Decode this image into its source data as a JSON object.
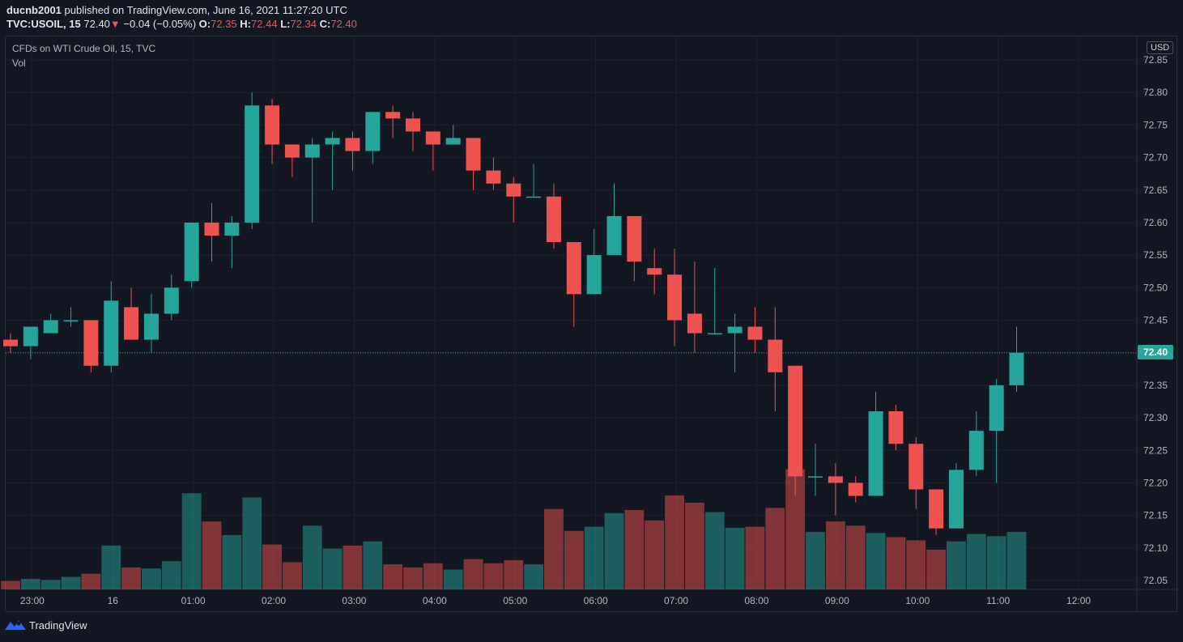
{
  "header": {
    "author": "ducnb2001",
    "published_text": "published on TradingView.com, June 16, 2021 11:27:20 UTC",
    "symbol": "TVC:USOIL, 15",
    "last": "72.40",
    "change": "−0.04 (−0.05%)",
    "open_label": "O:",
    "open": "72.35",
    "high_label": "H:",
    "high": "72.44",
    "low_label": "L:",
    "low": "72.34",
    "close_label": "C:",
    "close": "72.40"
  },
  "legend": {
    "title": "CFDs on WTI Crude Oil, 15, TVC",
    "vol": "Vol"
  },
  "currency": "USD",
  "price_tag": "72.40",
  "footer": {
    "brand": "TradingView",
    "logo_icon": "tradingview-logo-icon"
  },
  "colors": {
    "up": "#26a69a",
    "down": "#ef5350",
    "background": "#131722",
    "grid": "#1e222d"
  },
  "chart_data": {
    "type": "candlestick",
    "interval": "15",
    "y_ticks": [
      72.05,
      72.1,
      72.15,
      72.2,
      72.25,
      72.3,
      72.35,
      72.4,
      72.45,
      72.5,
      72.55,
      72.6,
      72.65,
      72.7,
      72.75,
      72.8,
      72.85
    ],
    "ylim": [
      72.03,
      72.87
    ],
    "x_tick_labels": [
      {
        "label": "23:00",
        "index": 1
      },
      {
        "label": "16",
        "index": 5
      },
      {
        "label": "01:00",
        "index": 9
      },
      {
        "label": "02:00",
        "index": 13
      },
      {
        "label": "03:00",
        "index": 17
      },
      {
        "label": "04:00",
        "index": 21
      },
      {
        "label": "05:00",
        "index": 25
      },
      {
        "label": "06:00",
        "index": 29
      },
      {
        "label": "07:00",
        "index": 33
      },
      {
        "label": "08:00",
        "index": 37
      },
      {
        "label": "09:00",
        "index": 41
      },
      {
        "label": "10:00",
        "index": 45
      },
      {
        "label": "11:00",
        "index": 49
      },
      {
        "label": "12:00",
        "index": 53
      }
    ],
    "ohlc": [
      [
        72.42,
        72.43,
        72.4,
        72.41
      ],
      [
        72.41,
        72.44,
        72.39,
        72.44
      ],
      [
        72.43,
        72.46,
        72.43,
        72.45
      ],
      [
        72.45,
        72.47,
        72.44,
        72.45
      ],
      [
        72.45,
        72.45,
        72.37,
        72.38
      ],
      [
        72.38,
        72.51,
        72.37,
        72.48
      ],
      [
        72.47,
        72.5,
        72.42,
        72.42
      ],
      [
        72.42,
        72.49,
        72.4,
        72.46
      ],
      [
        72.46,
        72.52,
        72.45,
        72.5
      ],
      [
        72.51,
        72.6,
        72.5,
        72.6
      ],
      [
        72.6,
        72.63,
        72.54,
        72.58
      ],
      [
        72.58,
        72.61,
        72.53,
        72.6
      ],
      [
        72.6,
        72.8,
        72.59,
        72.78
      ],
      [
        72.78,
        72.79,
        72.69,
        72.72
      ],
      [
        72.72,
        72.72,
        72.67,
        72.7
      ],
      [
        72.7,
        72.73,
        72.6,
        72.72
      ],
      [
        72.72,
        72.74,
        72.65,
        72.73
      ],
      [
        72.73,
        72.74,
        72.68,
        72.71
      ],
      [
        72.71,
        72.77,
        72.69,
        72.77
      ],
      [
        72.77,
        72.78,
        72.73,
        72.76
      ],
      [
        72.76,
        72.77,
        72.71,
        72.74
      ],
      [
        72.74,
        72.74,
        72.68,
        72.72
      ],
      [
        72.72,
        72.75,
        72.72,
        72.73
      ],
      [
        72.73,
        72.73,
        72.65,
        72.68
      ],
      [
        72.68,
        72.7,
        72.65,
        72.66
      ],
      [
        72.66,
        72.67,
        72.6,
        72.64
      ],
      [
        72.64,
        72.69,
        72.64,
        72.64
      ],
      [
        72.64,
        72.66,
        72.56,
        72.57
      ],
      [
        72.57,
        72.57,
        72.44,
        72.49
      ],
      [
        72.49,
        72.59,
        72.49,
        72.55
      ],
      [
        72.55,
        72.66,
        72.55,
        72.61
      ],
      [
        72.61,
        72.61,
        72.51,
        72.54
      ],
      [
        72.53,
        72.56,
        72.49,
        72.52
      ],
      [
        72.52,
        72.56,
        72.41,
        72.45
      ],
      [
        72.46,
        72.54,
        72.4,
        72.43
      ],
      [
        72.43,
        72.53,
        72.43,
        72.43
      ],
      [
        72.43,
        72.46,
        72.37,
        72.44
      ],
      [
        72.44,
        72.47,
        72.4,
        72.42
      ],
      [
        72.42,
        72.47,
        72.31,
        72.37
      ],
      [
        72.38,
        72.38,
        72.18,
        72.21
      ],
      [
        72.21,
        72.26,
        72.18,
        72.21
      ],
      [
        72.21,
        72.23,
        72.15,
        72.2
      ],
      [
        72.2,
        72.21,
        72.17,
        72.18
      ],
      [
        72.18,
        72.34,
        72.18,
        72.31
      ],
      [
        72.31,
        72.32,
        72.25,
        72.26
      ],
      [
        72.26,
        72.27,
        72.16,
        72.19
      ],
      [
        72.19,
        72.19,
        72.12,
        72.13
      ],
      [
        72.13,
        72.23,
        72.13,
        72.22
      ],
      [
        72.22,
        72.31,
        72.21,
        72.28
      ],
      [
        72.28,
        72.36,
        72.2,
        72.35
      ],
      [
        72.35,
        72.44,
        72.34,
        72.4
      ]
    ],
    "volume_relative": [
      0.08,
      0.1,
      0.09,
      0.12,
      0.15,
      0.42,
      0.21,
      0.2,
      0.27,
      0.92,
      0.65,
      0.52,
      0.88,
      0.43,
      0.26,
      0.61,
      0.39,
      0.42,
      0.46,
      0.24,
      0.21,
      0.25,
      0.19,
      0.29,
      0.25,
      0.28,
      0.24,
      0.77,
      0.56,
      0.6,
      0.73,
      0.76,
      0.66,
      0.9,
      0.83,
      0.74,
      0.59,
      0.6,
      0.78,
      1.15,
      0.55,
      0.65,
      0.61,
      0.54,
      0.5,
      0.47,
      0.38,
      0.46,
      0.53,
      0.51,
      0.55
    ]
  }
}
